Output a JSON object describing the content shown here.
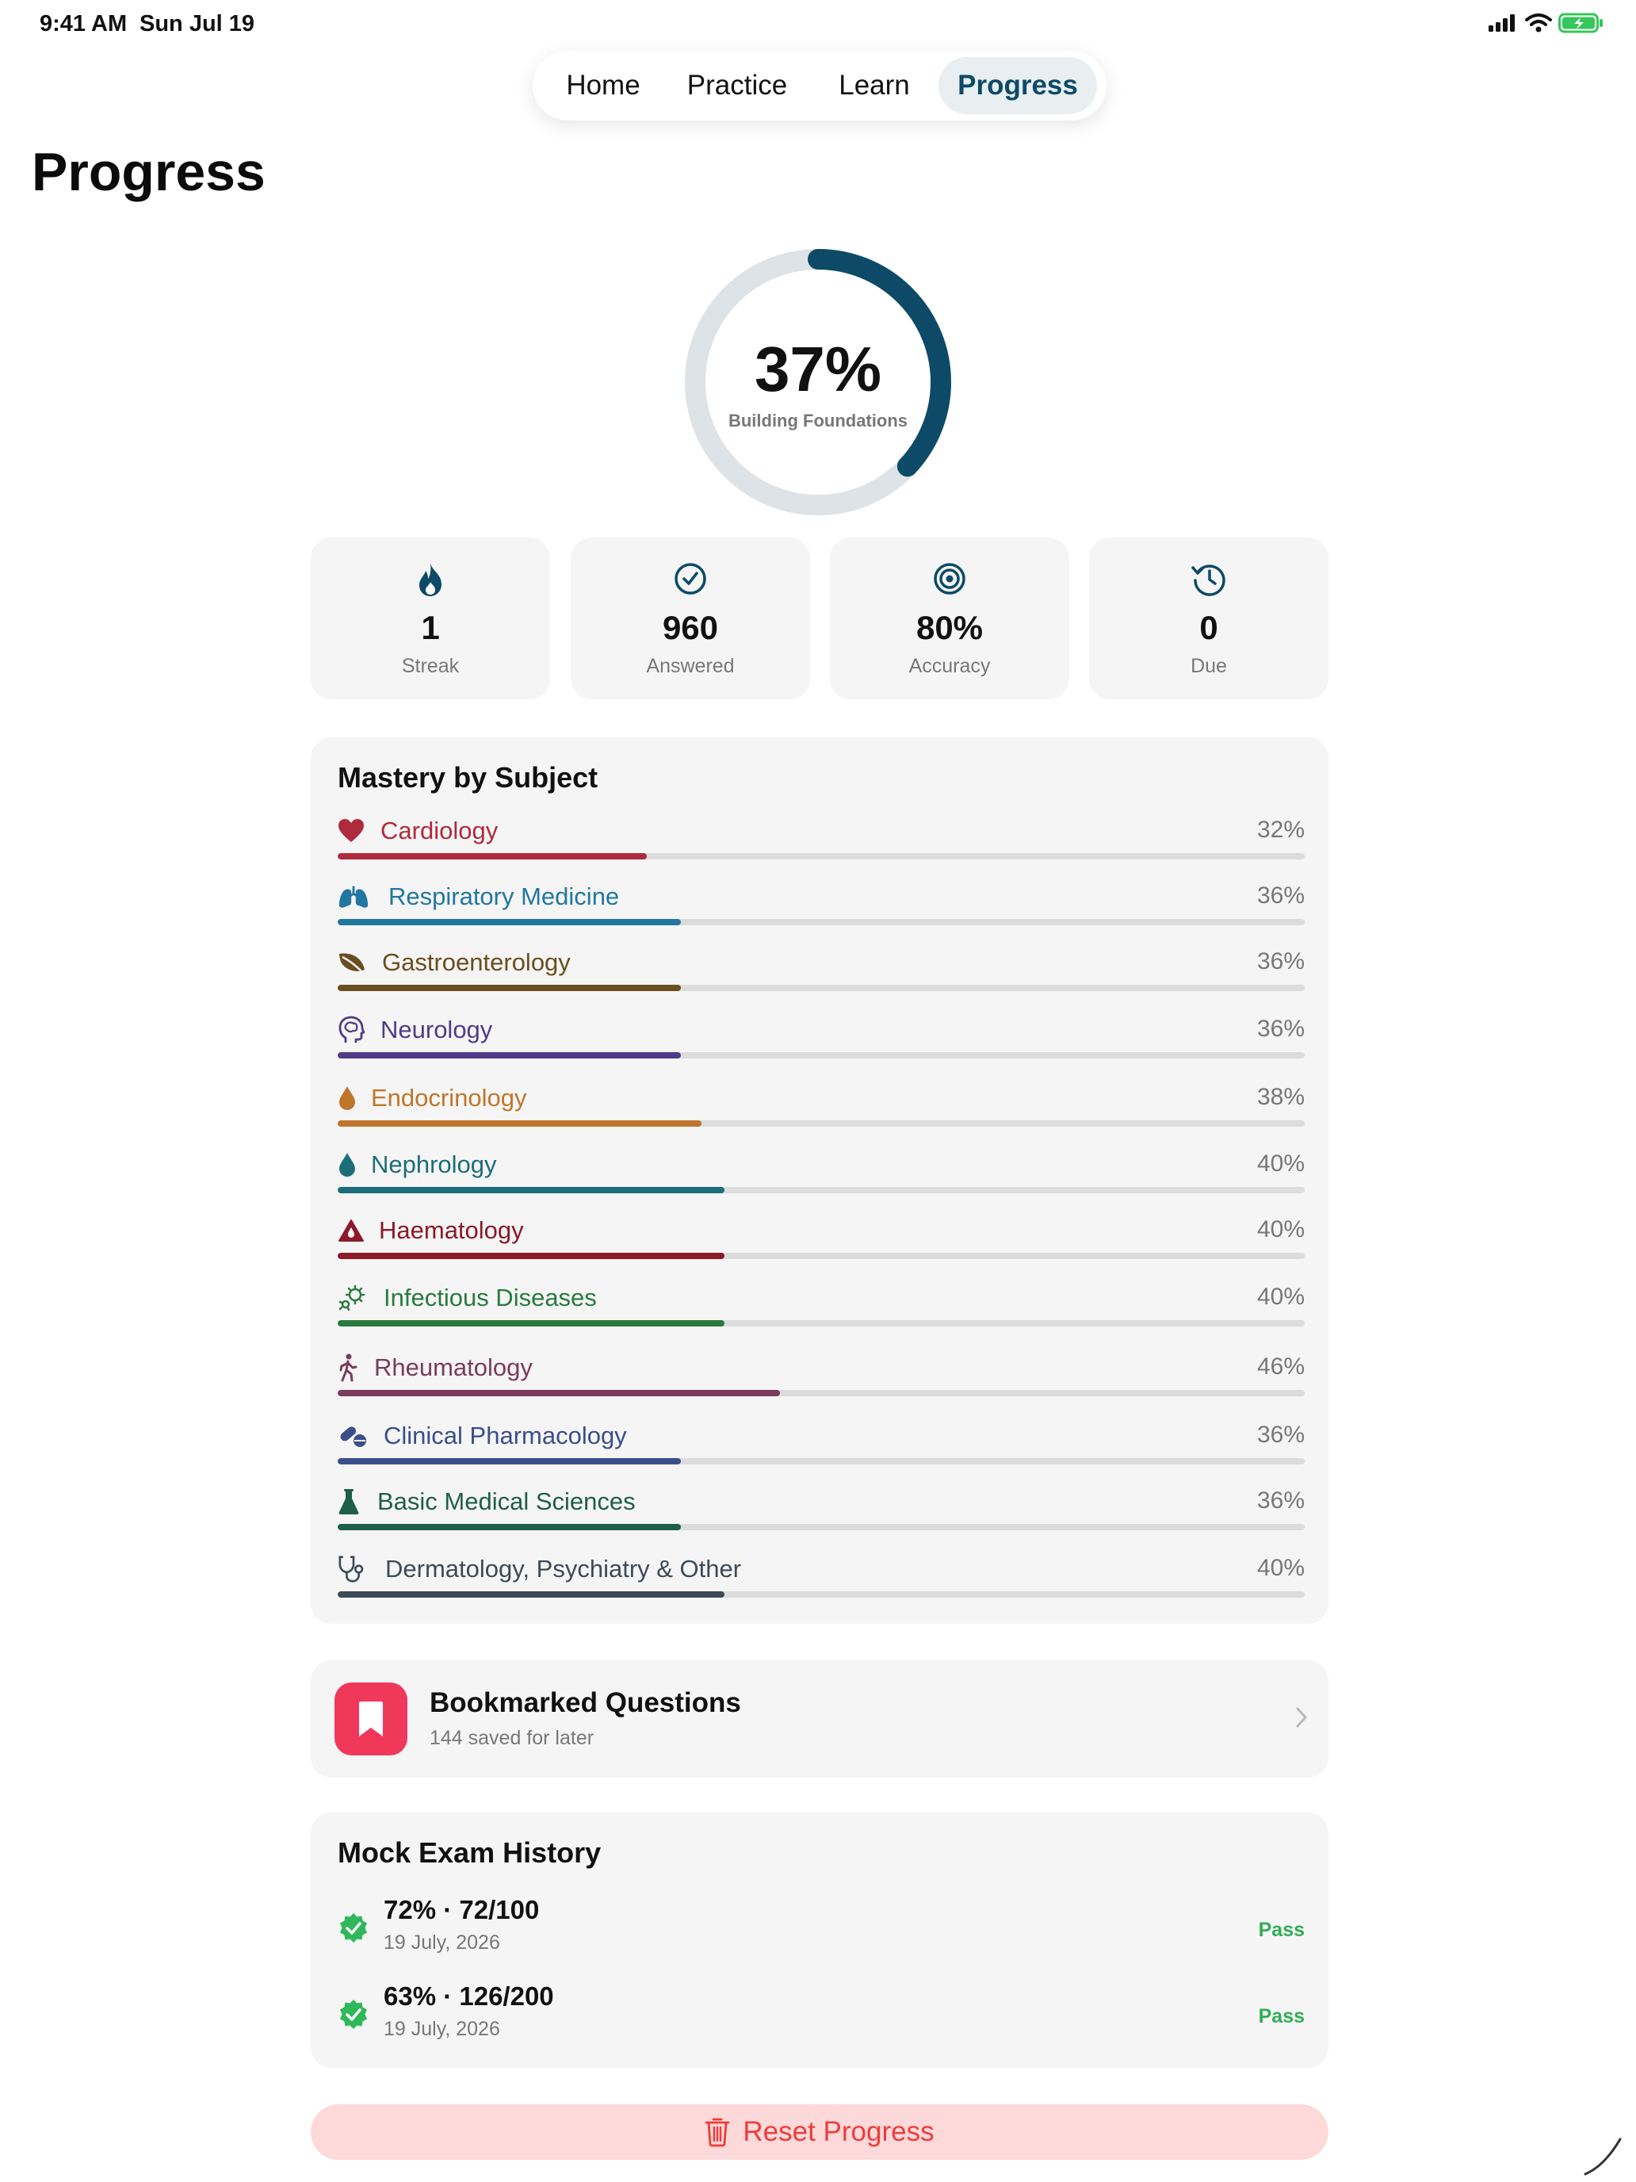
{
  "status": {
    "time": "9:41 AM",
    "date": "Sun Jul 19"
  },
  "nav": {
    "tabs": [
      "Home",
      "Practice",
      "Learn",
      "Progress"
    ],
    "active": "Progress"
  },
  "page": {
    "title": "Progress"
  },
  "overall": {
    "percent_label": "37%",
    "percent": 37,
    "caption": "Building Foundations",
    "ring_color": "#0d4a68",
    "track_color": "#dde3e7"
  },
  "stats": [
    {
      "icon": "flame-icon",
      "value": "1",
      "label": "Streak"
    },
    {
      "icon": "check-circle-icon",
      "value": "960",
      "label": "Answered"
    },
    {
      "icon": "target-icon",
      "value": "80%",
      "label": "Accuracy"
    },
    {
      "icon": "history-clock-icon",
      "value": "0",
      "label": "Due"
    }
  ],
  "mastery": {
    "title": "Mastery by Subject",
    "subjects": [
      {
        "name": "Cardiology",
        "percent_label": "32%",
        "fraction": 0.32,
        "color": "#b02a3d",
        "icon": "heart-icon"
      },
      {
        "name": "Respiratory Medicine",
        "percent_label": "36%",
        "fraction": 0.355,
        "color": "#2277a0",
        "icon": "lungs-icon"
      },
      {
        "name": "Gastroenterology",
        "percent_label": "36%",
        "fraction": 0.355,
        "color": "#6b4e1f",
        "icon": "leaf-icon"
      },
      {
        "name": "Neurology",
        "percent_label": "36%",
        "fraction": 0.355,
        "color": "#4f3b8a",
        "icon": "brain-head-icon"
      },
      {
        "name": "Endocrinology",
        "percent_label": "38%",
        "fraction": 0.376,
        "color": "#c0762a",
        "icon": "drop-icon"
      },
      {
        "name": "Nephrology",
        "percent_label": "40%",
        "fraction": 0.4,
        "color": "#1b6e78",
        "icon": "water-drop-icon"
      },
      {
        "name": "Haematology",
        "percent_label": "40%",
        "fraction": 0.4,
        "color": "#8b1a2b",
        "icon": "warning-triangle-icon"
      },
      {
        "name": "Infectious Diseases",
        "percent_label": "40%",
        "fraction": 0.4,
        "color": "#2a7a3e",
        "icon": "virus-icon"
      },
      {
        "name": "Rheumatology",
        "percent_label": "46%",
        "fraction": 0.457,
        "color": "#7a3b5c",
        "icon": "walking-person-icon"
      },
      {
        "name": "Clinical Pharmacology",
        "percent_label": "36%",
        "fraction": 0.355,
        "color": "#3a4f8a",
        "icon": "pills-icon"
      },
      {
        "name": "Basic Medical Sciences",
        "percent_label": "36%",
        "fraction": 0.355,
        "color": "#1f5e48",
        "icon": "flask-icon"
      },
      {
        "name": "Dermatology, Psychiatry & Other",
        "percent_label": "40%",
        "fraction": 0.4,
        "color": "#3e4a57",
        "icon": "stethoscope-icon"
      }
    ]
  },
  "bookmarks": {
    "title": "Bookmarked Questions",
    "subtitle": "144 saved for later"
  },
  "mock_exams": {
    "title": "Mock Exam History",
    "entries": [
      {
        "score": "72% · 72/100",
        "date": "19 July, 2026",
        "result": "Pass"
      },
      {
        "score": "63% · 126/200",
        "date": "19 July, 2026",
        "result": "Pass"
      }
    ]
  },
  "reset": {
    "label": "Reset Progress"
  }
}
